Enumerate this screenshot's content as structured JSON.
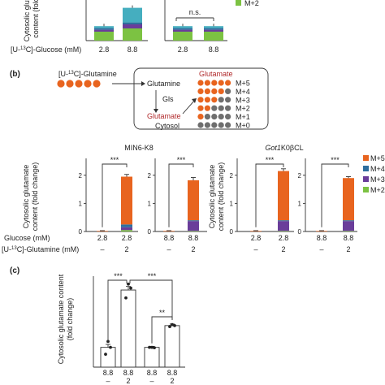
{
  "panel_a": {
    "ylabel_line1": "Cytosolic gluta",
    "ylabel_line2": "content (fold",
    "row_label": "Glucose (mM)",
    "row_label_prefix": "[U-",
    "row_label_iso": "13",
    "row_label_mid": "C]-",
    "xticks_left": [
      "2.8",
      "8.8"
    ],
    "xticks_right": [
      "2.8",
      "8.8"
    ],
    "ns_label": "n.s.",
    "legend_partial": "M+2"
  },
  "panel_b": {
    "label": "(b)",
    "tracer_prefix": "[U-",
    "tracer_iso": "13",
    "tracer_suffix": "C]-Glutamine",
    "diagram": {
      "glutamine": "Glutamine",
      "gls": "Gls",
      "glutamate_left": "Glutamate",
      "glutamate_right": "Glutamate",
      "cytosol": "Cytosol",
      "isotopologues": [
        "M+5",
        "M+4",
        "M+3",
        "M+2",
        "M+1",
        "M+0"
      ]
    },
    "group_title_left": "MIN6-K8",
    "group_title_right_italic": "Got1",
    "group_title_right_rest": "K0βCL",
    "ylabel_line1": "Cytosolic glutamate",
    "ylabel_line2": "content (fold change)",
    "row1_label": "Glucose (mM)",
    "row2_label_prefix": "[U-",
    "row2_label_iso": "13",
    "row2_label_suffix": "C]-Glutamine (mM)",
    "sig": "***",
    "glucose_values": [
      "2.8",
      "2.8",
      "8.8",
      "8.8",
      "2.8",
      "2.8",
      "8.8",
      "8.8"
    ],
    "glutamine_values": [
      "–",
      "2",
      "–",
      "2",
      "–",
      "2",
      "–",
      "2"
    ],
    "legend": [
      {
        "name": "M+5",
        "color": "#e8641f"
      },
      {
        "name": "M+4",
        "color": "#2e6e9e"
      },
      {
        "name": "M+3",
        "color": "#6a3d9a"
      },
      {
        "name": "M+2",
        "color": "#7cc242"
      }
    ]
  },
  "panel_c": {
    "label": "(c)",
    "ylabel_line1": "Cytosolic glutamate content",
    "ylabel_line2": "(fold change)",
    "sig_1": "***",
    "sig_2": "***",
    "sig_3": "**",
    "xticks_top": [
      "8.8",
      "8.8",
      "8.8",
      "8.8"
    ],
    "xticks_bottom": [
      "–",
      "2",
      "–",
      "2"
    ]
  },
  "chart_data": [
    {
      "type": "bar",
      "panel": "a",
      "ylabel": "Cytosolic glutamate content (fold change)",
      "categories": [
        "2.8",
        "8.8",
        "2.8",
        "8.8"
      ],
      "series": [
        {
          "name": "M+2",
          "color": "#7cc242",
          "values": [
            0.55,
            0.75,
            0.55,
            0.55
          ]
        },
        {
          "name": "M+3",
          "color": "#6a3d9a",
          "values": [
            0.12,
            0.25,
            0.12,
            0.12
          ]
        },
        {
          "name": "M+4",
          "color": "#2e6e9e",
          "values": [
            0.1,
            0.12,
            0.1,
            0.1
          ]
        },
        {
          "name": "M+5",
          "color": "#45aebf",
          "values": [
            0.12,
            0.9,
            0.12,
            0.12
          ]
        }
      ]
    },
    {
      "type": "bar",
      "panel": "b",
      "ylabel": "Cytosolic glutamate content (fold change)",
      "categories": [
        "2.8 / –",
        "2.8 / 2",
        "8.8 / –",
        "8.8 / 2",
        "2.8 / –",
        "2.8 / 2",
        "8.8 / –",
        "8.8 / 2"
      ],
      "ylim": [
        0,
        2.6
      ],
      "series": [
        {
          "name": "M+2",
          "color": "#7cc242",
          "values": [
            0.0,
            0.05,
            0.0,
            0.02,
            0.0,
            0.02,
            0.0,
            0.02
          ]
        },
        {
          "name": "M+3",
          "color": "#6a3d9a",
          "values": [
            0.0,
            0.1,
            0.0,
            0.35,
            0.0,
            0.35,
            0.0,
            0.35
          ]
        },
        {
          "name": "M+4",
          "color": "#2e6e9e",
          "values": [
            0.0,
            0.1,
            0.0,
            0.03,
            0.0,
            0.03,
            0.0,
            0.03
          ]
        },
        {
          "name": "M+5",
          "color": "#e8641f",
          "values": [
            0.02,
            1.7,
            0.02,
            1.42,
            0.02,
            1.75,
            0.02,
            1.5
          ]
        }
      ],
      "errors": [
        0.01,
        0.08,
        0.01,
        0.1,
        0.01,
        0.08,
        0.01,
        0.05
      ]
    },
    {
      "type": "bar",
      "panel": "c",
      "ylabel": "Cytosolic glutamate content (fold change)",
      "categories": [
        "8.8 / –",
        "8.8 / 2",
        "8.8 / –",
        "8.8 / 2"
      ],
      "ylim": [
        0,
        4.6
      ],
      "values": [
        1.0,
        3.9,
        1.0,
        2.1
      ],
      "errors": [
        0.15,
        0.18,
        0.05,
        0.08
      ],
      "points": [
        [
          0.65,
          1.3,
          1.0
        ],
        [
          3.5,
          4.2,
          4.0
        ],
        [
          1.0,
          1.0,
          0.98
        ],
        [
          2.05,
          2.15,
          2.1
        ]
      ]
    }
  ]
}
